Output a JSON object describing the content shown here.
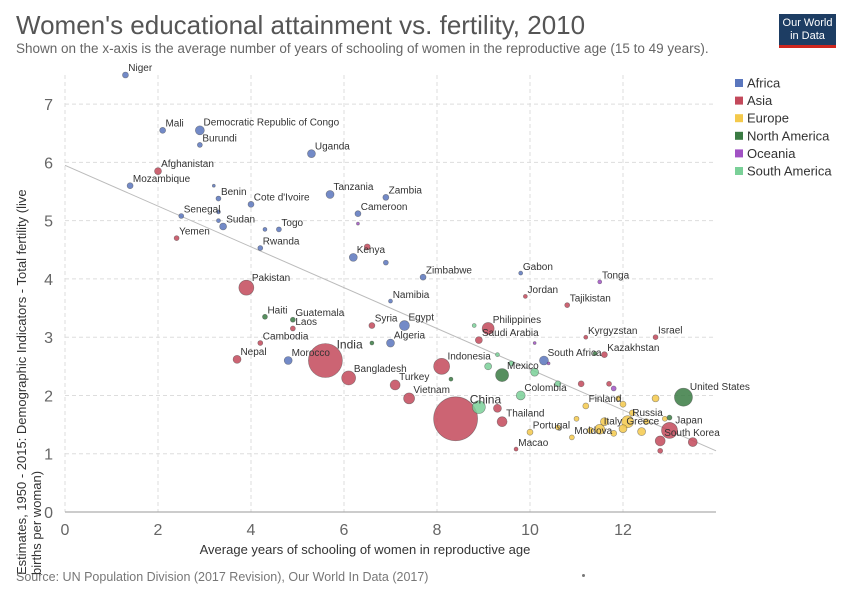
{
  "title": "Women's educational attainment vs. fertility, 2010",
  "subtitle": "Shown on the x-axis is the average number of years of schooling of women in the reproductive age (15 to 49 years).",
  "logo": {
    "line1": "Our World",
    "line2": "in Data"
  },
  "source": "Source: UN Population Division (2017 Revision), Our World In Data (2017)",
  "chart_data": {
    "type": "scatter",
    "xlabel": "Average years of schooling of women in reproductive age",
    "ylabel": "Estimates, 1950 - 2015: Demographic Indicators - Total fertility (live births per woman)",
    "xlim": [
      0,
      14
    ],
    "ylim": [
      0,
      7.5
    ],
    "xticks": [
      0,
      2,
      4,
      6,
      8,
      10,
      12
    ],
    "yticks": [
      0,
      1,
      2,
      3,
      4,
      5,
      6,
      7
    ],
    "grid": true,
    "legend_position": "right",
    "trendline": {
      "x": [
        0,
        14
      ],
      "y": [
        5.95,
        1.05
      ],
      "color": "#bbbbbb"
    },
    "series": [
      {
        "name": "Africa",
        "color": "#5a76bd",
        "points": [
          {
            "label": "Niger",
            "x": 1.3,
            "y": 7.5,
            "r": 3
          },
          {
            "label": "Mali",
            "x": 2.1,
            "y": 6.55,
            "r": 3
          },
          {
            "label": "Democratic Republic of Congo",
            "x": 2.9,
            "y": 6.55,
            "r": 4.5
          },
          {
            "label": "Burundi",
            "x": 2.9,
            "y": 6.3,
            "r": 2.5
          },
          {
            "label": "Uganda",
            "x": 5.3,
            "y": 6.15,
            "r": 4
          },
          {
            "label": "Mozambique",
            "x": 1.4,
            "y": 5.6,
            "r": 3
          },
          {
            "label": "Benin",
            "x": 3.3,
            "y": 5.38,
            "r": 2.5
          },
          {
            "label": "Cote d'Ivoire",
            "x": 4.0,
            "y": 5.28,
            "r": 3
          },
          {
            "label": "Tanzania",
            "x": 5.7,
            "y": 5.45,
            "r": 4
          },
          {
            "label": "Zambia",
            "x": 6.9,
            "y": 5.4,
            "r": 3
          },
          {
            "label": "Senegal",
            "x": 2.5,
            "y": 5.08,
            "r": 2.5
          },
          {
            "label": "Cameroon",
            "x": 6.3,
            "y": 5.12,
            "r": 3
          },
          {
            "label": "Sudan",
            "x": 3.4,
            "y": 4.9,
            "r": 3.5
          },
          {
            "label": "Togo",
            "x": 4.6,
            "y": 4.85,
            "r": 2.5
          },
          {
            "label": "Rwanda",
            "x": 4.2,
            "y": 4.53,
            "r": 2.5
          },
          {
            "label": "Kenya",
            "x": 6.2,
            "y": 4.37,
            "r": 4
          },
          {
            "label": "Zimbabwe",
            "x": 7.7,
            "y": 4.03,
            "r": 3
          },
          {
            "label": "Gabon",
            "x": 9.8,
            "y": 4.1,
            "r": 2
          },
          {
            "label": "Namibia",
            "x": 7.0,
            "y": 3.62,
            "r": 2
          },
          {
            "label": "Egypt",
            "x": 7.3,
            "y": 3.2,
            "r": 5
          },
          {
            "label": "Algeria",
            "x": 7.0,
            "y": 2.9,
            "r": 4
          },
          {
            "label": "Morocco",
            "x": 4.8,
            "y": 2.6,
            "r": 4
          },
          {
            "label": "South Africa",
            "x": 10.3,
            "y": 2.6,
            "r": 4.5
          },
          {
            "label": "",
            "x": 6.9,
            "y": 4.28,
            "r": 2.5
          },
          {
            "label": "",
            "x": 3.3,
            "y": 5.15,
            "r": 2
          },
          {
            "label": "",
            "x": 3.2,
            "y": 5.6,
            "r": 1.5
          },
          {
            "label": "",
            "x": 4.3,
            "y": 4.85,
            "r": 2
          },
          {
            "label": "",
            "x": 3.3,
            "y": 5.0,
            "r": 2
          }
        ]
      },
      {
        "name": "Asia",
        "color": "#c3495b",
        "points": [
          {
            "label": "Afghanistan",
            "x": 2.0,
            "y": 5.85,
            "r": 3.5
          },
          {
            "label": "Yemen",
            "x": 2.4,
            "y": 4.7,
            "r": 2.5
          },
          {
            "label": "Pakistan",
            "x": 3.9,
            "y": 3.85,
            "r": 7.5
          },
          {
            "label": "Nepal",
            "x": 3.7,
            "y": 2.62,
            "r": 4
          },
          {
            "label": "Laos",
            "x": 4.9,
            "y": 3.15,
            "r": 2.5
          },
          {
            "label": "Cambodia",
            "x": 4.2,
            "y": 2.9,
            "r": 2.5
          },
          {
            "label": "India",
            "x": 5.6,
            "y": 2.6,
            "r": 17
          },
          {
            "label": "Syria",
            "x": 6.6,
            "y": 3.2,
            "r": 3
          },
          {
            "label": "Bangladesh",
            "x": 6.1,
            "y": 2.3,
            "r": 7
          },
          {
            "label": "Turkey",
            "x": 7.1,
            "y": 2.18,
            "r": 5
          },
          {
            "label": "Vietnam",
            "x": 7.4,
            "y": 1.95,
            "r": 5.5
          },
          {
            "label": "Indonesia",
            "x": 8.1,
            "y": 2.5,
            "r": 8
          },
          {
            "label": "Philippines",
            "x": 9.1,
            "y": 3.15,
            "r": 6
          },
          {
            "label": "Saudi Arabia",
            "x": 8.9,
            "y": 2.95,
            "r": 3.5
          },
          {
            "label": "China",
            "x": 8.4,
            "y": 1.6,
            "r": 22
          },
          {
            "label": "Jordan",
            "x": 9.9,
            "y": 3.7,
            "r": 2
          },
          {
            "label": "Tajikistan",
            "x": 10.8,
            "y": 3.55,
            "r": 2.5
          },
          {
            "label": "Kyrgyzstan",
            "x": 11.2,
            "y": 3.0,
            "r": 2
          },
          {
            "label": "Kazakhstan",
            "x": 11.6,
            "y": 2.7,
            "r": 3
          },
          {
            "label": "Israel",
            "x": 12.7,
            "y": 3.0,
            "r": 2.5
          },
          {
            "label": "Thailand",
            "x": 9.4,
            "y": 1.55,
            "r": 5
          },
          {
            "label": "Macao",
            "x": 9.7,
            "y": 1.08,
            "r": 2
          },
          {
            "label": "Japan",
            "x": 13.0,
            "y": 1.4,
            "r": 8
          },
          {
            "label": "South Korea",
            "x": 12.8,
            "y": 1.22,
            "r": 5
          },
          {
            "label": "",
            "x": 13.5,
            "y": 1.2,
            "r": 4.5
          },
          {
            "label": "",
            "x": 9.3,
            "y": 1.78,
            "r": 4
          },
          {
            "label": "",
            "x": 6.5,
            "y": 4.55,
            "r": 3
          },
          {
            "label": "",
            "x": 11.1,
            "y": 2.2,
            "r": 3
          },
          {
            "label": "",
            "x": 11.7,
            "y": 2.2,
            "r": 2.5
          },
          {
            "label": "",
            "x": 12.8,
            "y": 1.05,
            "r": 2.5
          }
        ]
      },
      {
        "name": "Europe",
        "color": "#f4c94b",
        "points": [
          {
            "label": "Finland",
            "x": 11.2,
            "y": 1.82,
            "r": 3
          },
          {
            "label": "Russia",
            "x": 12.1,
            "y": 1.55,
            "r": 6
          },
          {
            "label": "Italy",
            "x": 11.5,
            "y": 1.42,
            "r": 5
          },
          {
            "label": "Greece",
            "x": 12.0,
            "y": 1.43,
            "r": 4
          },
          {
            "label": "Portugal",
            "x": 10.0,
            "y": 1.37,
            "r": 3
          },
          {
            "label": "Moldova",
            "x": 10.9,
            "y": 1.28,
            "r": 2.5
          },
          {
            "label": "",
            "x": 11.6,
            "y": 1.55,
            "r": 4
          },
          {
            "label": "",
            "x": 12.0,
            "y": 1.85,
            "r": 3
          },
          {
            "label": "",
            "x": 12.4,
            "y": 1.38,
            "r": 4
          },
          {
            "label": "",
            "x": 12.7,
            "y": 1.95,
            "r": 3.5
          },
          {
            "label": "",
            "x": 11.3,
            "y": 1.4,
            "r": 3
          },
          {
            "label": "",
            "x": 11.9,
            "y": 1.95,
            "r": 2.5
          },
          {
            "label": "",
            "x": 12.2,
            "y": 1.7,
            "r": 3
          },
          {
            "label": "",
            "x": 10.6,
            "y": 1.45,
            "r": 2.5
          },
          {
            "label": "",
            "x": 11.0,
            "y": 1.6,
            "r": 2.5
          },
          {
            "label": "",
            "x": 12.5,
            "y": 1.55,
            "r": 3
          },
          {
            "label": "",
            "x": 11.8,
            "y": 1.35,
            "r": 3
          },
          {
            "label": "",
            "x": 12.9,
            "y": 1.6,
            "r": 2.5
          }
        ]
      },
      {
        "name": "North America",
        "color": "#3a7b43",
        "points": [
          {
            "label": "Haiti",
            "x": 4.3,
            "y": 3.35,
            "r": 2.5
          },
          {
            "label": "Guatemala",
            "x": 4.9,
            "y": 3.3,
            "r": 2.5
          },
          {
            "label": "Mexico",
            "x": 9.4,
            "y": 2.35,
            "r": 6.5
          },
          {
            "label": "United States",
            "x": 13.3,
            "y": 1.97,
            "r": 9
          },
          {
            "label": "",
            "x": 8.3,
            "y": 2.28,
            "r": 2
          },
          {
            "label": "",
            "x": 6.6,
            "y": 2.9,
            "r": 2
          },
          {
            "label": "",
            "x": 13.0,
            "y": 1.62,
            "r": 2.5
          },
          {
            "label": "",
            "x": 11.4,
            "y": 2.72,
            "r": 2
          }
        ]
      },
      {
        "name": "Oceania",
        "color": "#a152c4",
        "points": [
          {
            "label": "Tonga",
            "x": 11.5,
            "y": 3.95,
            "r": 2
          },
          {
            "label": "",
            "x": 11.8,
            "y": 2.12,
            "r": 2.5
          },
          {
            "label": "",
            "x": 6.3,
            "y": 4.95,
            "r": 1.5
          },
          {
            "label": "",
            "x": 10.1,
            "y": 2.9,
            "r": 1.5
          },
          {
            "label": "",
            "x": 10.4,
            "y": 2.55,
            "r": 1.5
          }
        ]
      },
      {
        "name": "South America",
        "color": "#7ad098",
        "points": [
          {
            "label": "Colombia",
            "x": 9.8,
            "y": 2.0,
            "r": 4.5
          },
          {
            "label": "",
            "x": 8.9,
            "y": 1.8,
            "r": 6.5
          },
          {
            "label": "",
            "x": 9.1,
            "y": 2.5,
            "r": 3.5
          },
          {
            "label": "",
            "x": 8.8,
            "y": 3.2,
            "r": 2
          },
          {
            "label": "",
            "x": 10.1,
            "y": 2.4,
            "r": 4
          },
          {
            "label": "",
            "x": 9.6,
            "y": 2.55,
            "r": 2.5
          },
          {
            "label": "",
            "x": 10.6,
            "y": 2.2,
            "r": 3
          },
          {
            "label": "",
            "x": 9.3,
            "y": 2.7,
            "r": 2
          }
        ]
      }
    ]
  }
}
